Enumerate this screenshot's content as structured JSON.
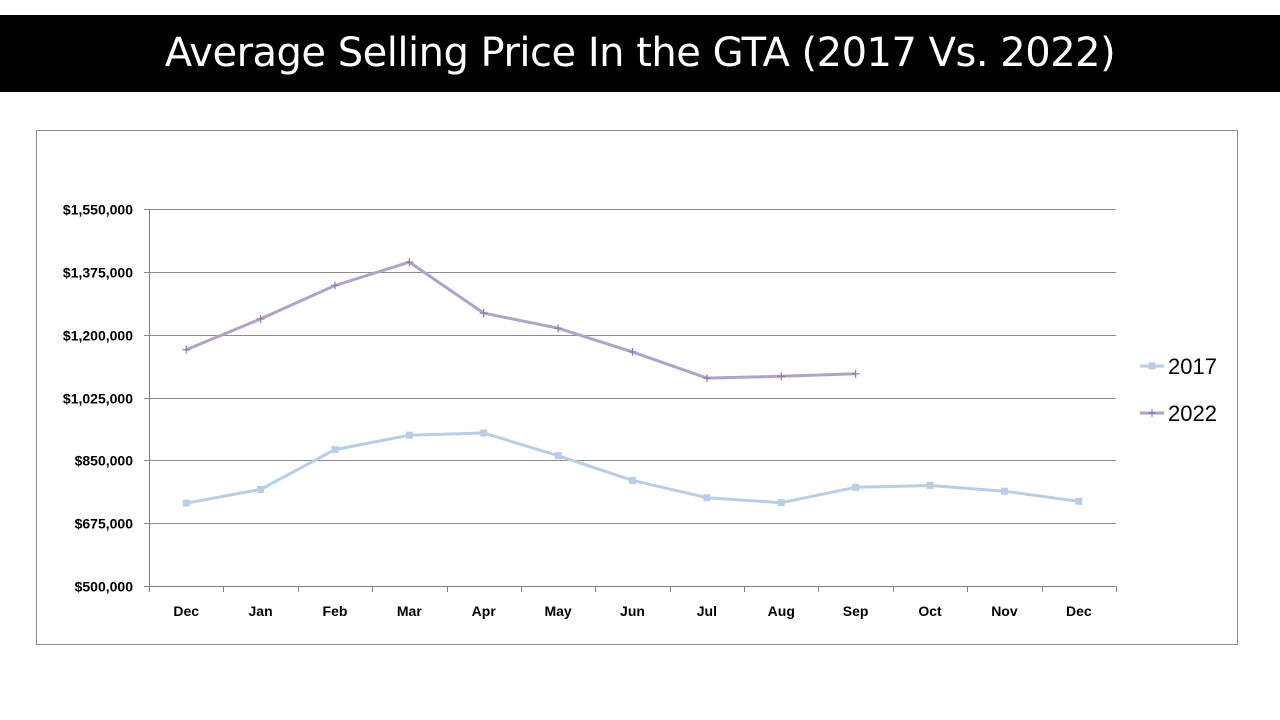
{
  "title": "Average Selling Price In the GTA (2017 Vs. 2022)",
  "colors": {
    "background": "#ffffff",
    "title_bar": "#000000",
    "title_text": "#ffffff",
    "series_2017": "#b9cde5",
    "series_2022": "#b3a2c7",
    "gridline": "#808080"
  },
  "chart_data": {
    "type": "line",
    "title": "",
    "xlabel": "",
    "ylabel": "",
    "categories": [
      "Dec",
      "Jan",
      "Feb",
      "Mar",
      "Apr",
      "May",
      "Jun",
      "Jul",
      "Aug",
      "Sep",
      "Oct",
      "Nov",
      "Dec"
    ],
    "ylim": [
      500000,
      1550000
    ],
    "yticks": [
      500000,
      675000,
      850000,
      1025000,
      1200000,
      1375000,
      1550000
    ],
    "ytick_labels": [
      "$500,000",
      "$675,000",
      "$850,000",
      "$1,025,000",
      "$1,200,000",
      "$1,375,000",
      "$1,550,000"
    ],
    "grid": true,
    "legend": "right",
    "series": [
      {
        "name": "2017",
        "marker": "square",
        "color": "#b9cde5",
        "values": [
          731000,
          769000,
          880000,
          920000,
          926000,
          863000,
          794000,
          746000,
          732000,
          775000,
          780000,
          764000,
          736000
        ]
      },
      {
        "name": "2022",
        "marker": "plus",
        "color": "#b3a2c7",
        "values": [
          1158000,
          1244000,
          1337000,
          1402000,
          1260000,
          1218000,
          1152000,
          1079000,
          1084000,
          1091000,
          null,
          null,
          null
        ]
      }
    ]
  }
}
